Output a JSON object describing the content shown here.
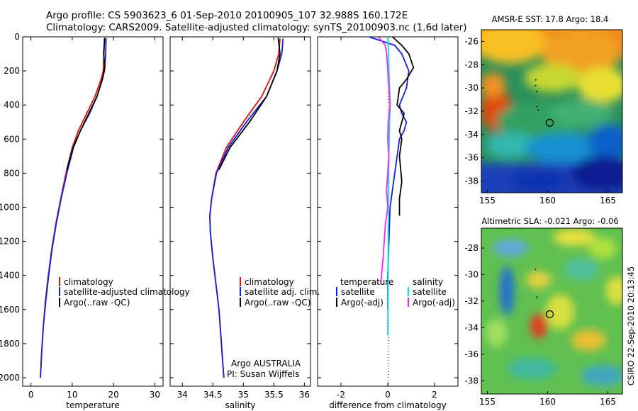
{
  "header": {
    "line1": "Argo profile: CS 5903623_6 01-Sep-2010 20100905_107 32.988S 160.172E",
    "line2": "Climatology: CARS2009. Satellite-adjusted climatology: synTS_20100903.nc (1.6d later)"
  },
  "colors": {
    "climatology": "#e01010",
    "satellite": "#1020e0",
    "argo": "#000000",
    "satellite_sal": "#00e5e5",
    "argo_sal": "#ff20ff"
  },
  "chart_data": [
    {
      "type": "line",
      "xlabel": "temperature",
      "ylabel": "",
      "xlim": [
        -2,
        32
      ],
      "ylim": [
        0,
        2050
      ],
      "y_reversed": true,
      "xticks": [
        0,
        10,
        20,
        30
      ],
      "yticks": [
        0,
        200,
        400,
        600,
        800,
        1000,
        1200,
        1400,
        1600,
        1800,
        2000
      ],
      "legend": [
        "climatology",
        "satellite-adjusted climatology",
        "Argo(..raw -QC)"
      ],
      "series": [
        {
          "name": "climatology",
          "color": "#e01010",
          "x": [
            17.8,
            17.7,
            17.5,
            17.0,
            15.5,
            13.5,
            11.5,
            10.0,
            8.5,
            7.2,
            6.0,
            5.0,
            4.2,
            3.5,
            3.0,
            2.6,
            2.3
          ],
          "y": [
            10,
            100,
            200,
            250,
            350,
            450,
            550,
            650,
            800,
            950,
            1100,
            1250,
            1400,
            1550,
            1700,
            1850,
            2000
          ]
        },
        {
          "name": "satellite-adjusted climatology",
          "color": "#1020e0",
          "x": [
            18.2,
            18.1,
            17.8,
            17.3,
            16.0,
            14.2,
            12.0,
            10.3,
            8.7,
            7.3,
            6.1,
            5.1,
            4.3,
            3.6,
            3.0,
            2.6,
            2.3
          ],
          "y": [
            10,
            100,
            200,
            250,
            350,
            450,
            550,
            650,
            800,
            950,
            1100,
            1250,
            1400,
            1550,
            1700,
            1850,
            2000
          ]
        },
        {
          "name": "Argo(..raw -QC)",
          "color": "#000000",
          "x": [
            17.9,
            17.6,
            17.9,
            17.3,
            16.0,
            14.0,
            12.0,
            10.2,
            8.7
          ],
          "y": [
            5,
            100,
            180,
            250,
            350,
            450,
            550,
            650,
            780
          ]
        }
      ]
    },
    {
      "type": "line",
      "xlabel": "salinity",
      "ylabel": "",
      "xlim": [
        33.8,
        36.1
      ],
      "ylim": [
        0,
        2050
      ],
      "y_reversed": true,
      "xticks": [
        34,
        34.5,
        35,
        35.5,
        36
      ],
      "legend": [
        "climatology",
        "satellite adj. clim.",
        "Argo(..raw -QC)"
      ],
      "annotation": [
        "Argo AUSTRALIA",
        "PI: Susan Wijffels"
      ],
      "series": [
        {
          "name": "climatology",
          "color": "#e01010",
          "x": [
            35.6,
            35.58,
            35.5,
            35.3,
            35.0,
            34.72,
            34.55,
            34.48,
            34.45,
            34.46,
            34.5,
            34.55,
            34.6,
            34.63,
            34.66,
            34.68
          ],
          "y": [
            10,
            100,
            200,
            350,
            500,
            650,
            800,
            950,
            1050,
            1150,
            1300,
            1450,
            1600,
            1750,
            1900,
            2000
          ]
        },
        {
          "name": "satellite adj. clim.",
          "color": "#1020e0",
          "x": [
            35.65,
            35.63,
            35.55,
            35.38,
            35.05,
            34.75,
            34.56,
            34.48,
            34.45,
            34.46,
            34.5,
            34.55,
            34.6,
            34.63,
            34.66,
            34.68
          ],
          "y": [
            10,
            100,
            200,
            350,
            500,
            650,
            800,
            950,
            1050,
            1150,
            1300,
            1450,
            1600,
            1750,
            1900,
            2000
          ]
        },
        {
          "name": "Argo(..raw -QC)",
          "color": "#000000",
          "x": [
            35.57,
            35.6,
            35.55,
            35.38,
            35.1,
            34.78,
            34.6
          ],
          "y": [
            5,
            100,
            200,
            350,
            500,
            650,
            780
          ]
        }
      ]
    },
    {
      "type": "line",
      "xlabel": "difference from climatology",
      "ylabel": "",
      "xlim": [
        -3,
        3
      ],
      "ylim": [
        0,
        2050
      ],
      "y_reversed": true,
      "xticks": [
        -2,
        0,
        2
      ],
      "legend_groups": [
        {
          "title": "temperature",
          "entries": [
            "satellite",
            "Argo(-adj)"
          ]
        },
        {
          "title": "salinity",
          "entries": [
            "satellite",
            "Argo(-adj)"
          ]
        }
      ],
      "series": [
        {
          "name": "satellite",
          "group": "temperature",
          "color": "#1020e0",
          "x": [
            -0.8,
            0.3,
            0.6,
            0.9,
            0.8,
            0.5,
            0.6,
            0.8,
            0.7,
            0.5,
            0.4,
            0.3,
            0.2,
            0.1,
            0.05,
            0.0,
            0.0
          ],
          "y": [
            0,
            50,
            100,
            200,
            300,
            400,
            450,
            500,
            550,
            600,
            700,
            800,
            900,
            1000,
            1200,
            1400,
            1600
          ]
        },
        {
          "name": "Argo(-adj)",
          "group": "temperature",
          "color": "#000000",
          "x": [
            0.2,
            0.6,
            0.9,
            1.1,
            0.8,
            0.5,
            0.4,
            0.7,
            0.6,
            0.5,
            0.6,
            0.5,
            0.6,
            0.5,
            0.5
          ],
          "y": [
            0,
            50,
            100,
            180,
            250,
            300,
            400,
            450,
            500,
            550,
            600,
            700,
            850,
            950,
            1050
          ]
        },
        {
          "name": "satellite",
          "group": "salinity",
          "color": "#00e5e5",
          "x": [
            0.0,
            0.03,
            0.05,
            0.08,
            0.1,
            0.08,
            0.05,
            0.03,
            0.02,
            0.01,
            0.0
          ],
          "y": [
            0,
            100,
            200,
            300,
            400,
            500,
            700,
            900,
            1200,
            1500,
            1750
          ]
        },
        {
          "name": "Argo(-adj)",
          "group": "salinity",
          "color": "#ff20ff",
          "x": [
            -0.4,
            -0.1,
            -0.05,
            0.0,
            0.05,
            0.1,
            0.02,
            0.0,
            0.05,
            0.0,
            -0.05,
            0.0,
            -0.1,
            -0.2,
            -0.3
          ],
          "y": [
            0,
            50,
            100,
            200,
            300,
            400,
            500,
            600,
            700,
            800,
            900,
            1000,
            1100,
            1300,
            1450
          ]
        }
      ]
    },
    {
      "type": "heatmap",
      "title": "AMSR-E SST: 17.8 Argo: 18.4",
      "xlim": [
        154.5,
        166.2
      ],
      "ylim": [
        -39,
        -25
      ],
      "xticks": [
        155,
        160,
        165
      ],
      "yticks": [
        -26,
        -28,
        -30,
        -32,
        -34,
        -36,
        -38
      ],
      "marker": {
        "lon": 160.172,
        "lat": -32.988
      },
      "track": [
        [
          159.0,
          -29.3
        ],
        [
          159.0,
          -29.8
        ],
        [
          159.1,
          -30.3
        ],
        [
          159.1,
          -31.6
        ],
        [
          159.2,
          -31.9
        ]
      ]
    },
    {
      "type": "heatmap",
      "title": "Altimetric SLA: -0.021 Argo: -0.06",
      "xlim": [
        154.5,
        166.2
      ],
      "ylim": [
        -39,
        -26.5
      ],
      "xticks": [
        155,
        160,
        165
      ],
      "yticks": [
        -28,
        -30,
        -32,
        -34,
        -36,
        -38
      ],
      "marker": {
        "lon": 160.172,
        "lat": -32.988
      },
      "track": [
        [
          159.0,
          -29.6
        ],
        [
          159.1,
          -31.7
        ]
      ],
      "side_label": "CSIRO 22-Sep-2010 20:13:45"
    }
  ]
}
